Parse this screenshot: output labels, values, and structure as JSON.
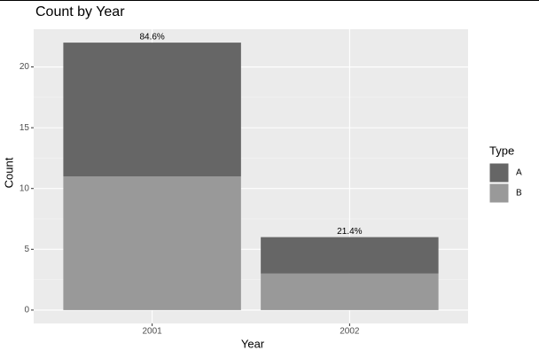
{
  "chart_data": {
    "type": "bar",
    "stacked": true,
    "title": "Count by Year",
    "x_label": "Year",
    "y_label": "Count",
    "categories": [
      "2001",
      "2002"
    ],
    "series": [
      {
        "name": "A",
        "color": "#666666",
        "values": [
          11,
          3
        ]
      },
      {
        "name": "B",
        "color": "#999999",
        "values": [
          11,
          3
        ]
      }
    ],
    "annotations": [
      "84.6%",
      "21.4%"
    ],
    "legend_title": "Type",
    "legend": "right",
    "ylim": [
      -1.1,
      23.1
    ],
    "yticks": [
      0,
      5,
      10,
      15,
      20
    ],
    "grid": true
  }
}
